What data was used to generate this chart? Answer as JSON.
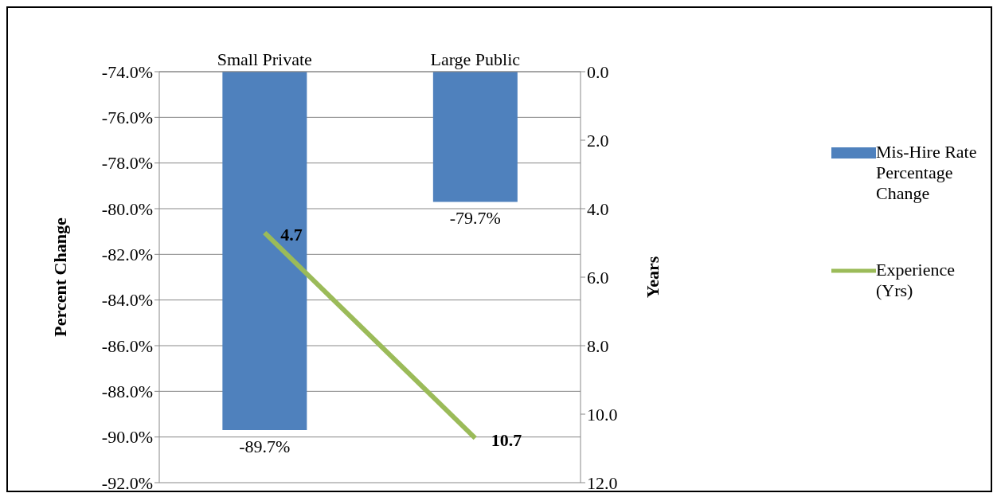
{
  "chart_data": {
    "type": "bar",
    "categories": [
      "Small Private",
      "Large Public"
    ],
    "ylabel": "Percent Change",
    "y2label": "Years",
    "series": [
      {
        "name": "Mis-Hire Rate Percentage Change",
        "color": "#4f81bd",
        "values": [
          -89.7,
          -79.7
        ],
        "value_labels": [
          "-89.7%",
          "-79.7%"
        ]
      },
      {
        "name": "Experience (Yrs)",
        "type": "line",
        "axis": "y2",
        "color": "#9bbb59",
        "values": [
          4.7,
          10.7
        ],
        "value_labels": [
          "4.7",
          "10.7"
        ]
      }
    ],
    "ylim": [
      -92,
      -74
    ],
    "yticks": [
      {
        "value": -92,
        "label": "-92.0%"
      },
      {
        "value": -90,
        "label": "-90.0%"
      },
      {
        "value": -88,
        "label": "-88.0%"
      },
      {
        "value": -86,
        "label": "-86.0%"
      },
      {
        "value": -84,
        "label": "-84.0%"
      },
      {
        "value": -82,
        "label": "-82.0%"
      },
      {
        "value": -80,
        "label": "-80.0%"
      },
      {
        "value": -78,
        "label": "-78.0%"
      },
      {
        "value": -76,
        "label": "-76.0%"
      },
      {
        "value": -74,
        "label": "-74.0%"
      }
    ],
    "y2lim": [
      12,
      0
    ],
    "y2ticks": [
      {
        "value": 0,
        "label": "0.0"
      },
      {
        "value": 2,
        "label": "2.0"
      },
      {
        "value": 4,
        "label": "4.0"
      },
      {
        "value": 6,
        "label": "6.0"
      },
      {
        "value": 8,
        "label": "8.0"
      },
      {
        "value": 10,
        "label": "10.0"
      },
      {
        "value": 12,
        "label": "12.0"
      }
    ],
    "grid": "y",
    "legend": "right",
    "marker": "none",
    "line_style": "solid"
  }
}
